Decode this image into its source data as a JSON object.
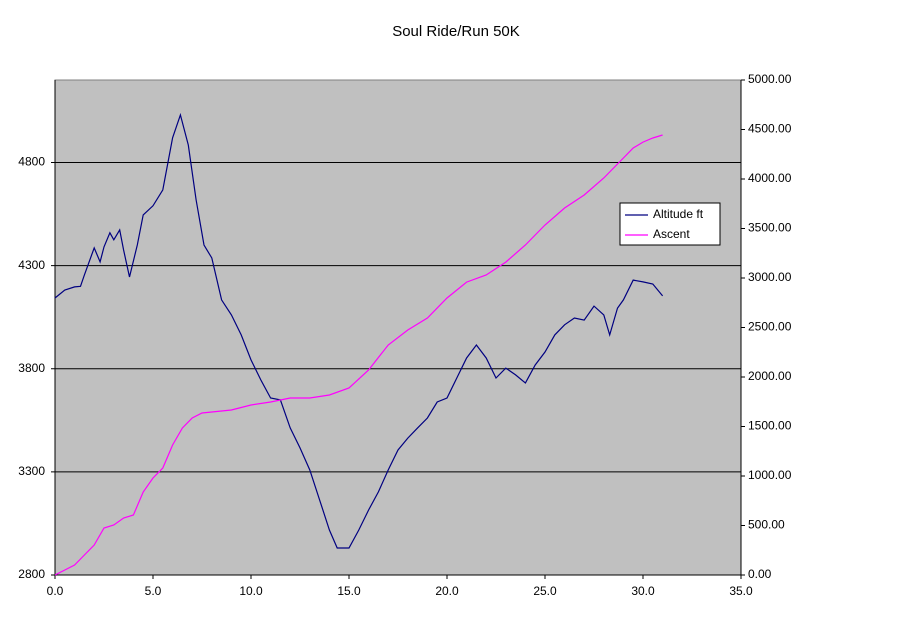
{
  "chart_data": {
    "type": "line",
    "title": "Soul Ride/Run 50K",
    "background": "#c0c0c0",
    "grid": true,
    "legend": "right",
    "xlim": [
      0,
      35
    ],
    "xticks": [
      {
        "value": 0,
        "label": "0.0"
      },
      {
        "value": 5,
        "label": "5.0"
      },
      {
        "value": 10,
        "label": "10.0"
      },
      {
        "value": 15,
        "label": "15.0"
      },
      {
        "value": 20,
        "label": "20.0"
      },
      {
        "value": 25,
        "label": "25.0"
      },
      {
        "value": 30,
        "label": "30.0"
      },
      {
        "value": 35,
        "label": "35.0"
      }
    ],
    "ylim": [
      2800,
      5200
    ],
    "yticks": [
      2800,
      3300,
      3800,
      4300,
      4800
    ],
    "y2lim": [
      0,
      5000
    ],
    "y2ticks": [
      {
        "value": 0,
        "label": "0.00"
      },
      {
        "value": 500,
        "label": "500.00"
      },
      {
        "value": 1000,
        "label": "1000.00"
      },
      {
        "value": 1500,
        "label": "1500.00"
      },
      {
        "value": 2000,
        "label": "2000.00"
      },
      {
        "value": 2500,
        "label": "2500.00"
      },
      {
        "value": 3000,
        "label": "3000.00"
      },
      {
        "value": 3500,
        "label": "3500.00"
      },
      {
        "value": 4000,
        "label": "4000.00"
      },
      {
        "value": 4500,
        "label": "4500.00"
      },
      {
        "value": 5000,
        "label": "5000.00"
      }
    ],
    "series": [
      {
        "name": "Altitude ft",
        "color": "#000080",
        "x": [
          0,
          0.5,
          1.0,
          1.3,
          1.5,
          2.0,
          2.3,
          2.5,
          2.8,
          3.0,
          3.3,
          3.5,
          3.8,
          4.2,
          4.5,
          5.0,
          5.5,
          6.0,
          6.4,
          6.8,
          7.2,
          7.6,
          8.0,
          8.5,
          9.0,
          9.5,
          10.0,
          10.5,
          11.0,
          11.5,
          12.0,
          12.5,
          13.0,
          13.5,
          14.0,
          14.4,
          15.0,
          15.5,
          16.0,
          16.5,
          17.0,
          17.5,
          18.0,
          18.5,
          19.0,
          19.5,
          20.0,
          20.5,
          21.0,
          21.5,
          22.0,
          22.5,
          23.0,
          23.5,
          24.0,
          24.5,
          25.0,
          25.5,
          26.0,
          26.5,
          27.0,
          27.5,
          28.0,
          28.3,
          28.7,
          29.0,
          29.5,
          30.0,
          30.5,
          31.0
        ],
        "values": [
          4143,
          4182,
          4197,
          4200,
          4255,
          4386,
          4318,
          4391,
          4459,
          4425,
          4473,
          4376,
          4245,
          4400,
          4546,
          4590,
          4667,
          4920,
          5031,
          4885,
          4619,
          4400,
          4337,
          4134,
          4061,
          3964,
          3843,
          3746,
          3658,
          3649,
          3513,
          3416,
          3309,
          3164,
          3018,
          2931,
          2931,
          3018,
          3115,
          3203,
          3309,
          3406,
          3464,
          3513,
          3561,
          3639,
          3658,
          3755,
          3852,
          3915,
          3852,
          3755,
          3803,
          3770,
          3731,
          3818,
          3881,
          3964,
          4013,
          4046,
          4036,
          4104,
          4061,
          3964,
          4094,
          4134,
          4230,
          4221,
          4211,
          4153
        ]
      },
      {
        "name": "Ascent",
        "color": "#ff00ff",
        "axis": "y2",
        "x": [
          0,
          1.0,
          1.5,
          2.0,
          2.5,
          3.0,
          3.5,
          4.0,
          4.5,
          5.0,
          5.5,
          6.0,
          6.5,
          7.0,
          7.5,
          8.0,
          9.0,
          10.0,
          11.0,
          12.0,
          13.0,
          14.0,
          15.0,
          16.0,
          17.0,
          18.0,
          19.0,
          20.0,
          21.0,
          22.0,
          23.0,
          24.0,
          25.0,
          26.0,
          27.0,
          28.0,
          29.0,
          29.5,
          30.0,
          30.5,
          31.0
        ],
        "values": [
          0,
          101,
          202,
          303,
          475,
          505,
          576,
          606,
          838,
          980,
          1081,
          1313,
          1485,
          1586,
          1636,
          1646,
          1667,
          1717,
          1747,
          1788,
          1788,
          1818,
          1889,
          2071,
          2323,
          2475,
          2596,
          2798,
          2959,
          3030,
          3161,
          3333,
          3535,
          3707,
          3838,
          4010,
          4212,
          4313,
          4373,
          4414,
          4444
        ]
      }
    ]
  }
}
